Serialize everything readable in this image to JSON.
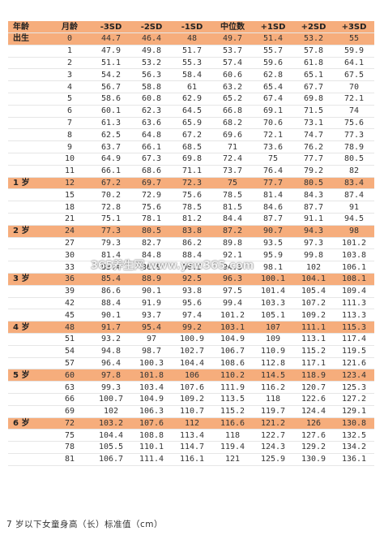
{
  "table": {
    "headers": [
      "年龄",
      "月龄",
      "-3SD",
      "-2SD",
      "-1SD",
      "中位数",
      "+1SD",
      "+2SD",
      "+3SD"
    ],
    "rows": [
      {
        "age": "出生",
        "m": "0",
        "v": [
          "44.7",
          "46.4",
          "48",
          "49.7",
          "51.4",
          "53.2",
          "55"
        ],
        "hl": true
      },
      {
        "age": "",
        "m": "1",
        "v": [
          "47.9",
          "49.8",
          "51.7",
          "53.7",
          "55.7",
          "57.8",
          "59.9"
        ],
        "hl": false
      },
      {
        "age": "",
        "m": "2",
        "v": [
          "51.1",
          "53.2",
          "55.3",
          "57.4",
          "59.6",
          "61.8",
          "64.1"
        ],
        "hl": false
      },
      {
        "age": "",
        "m": "3",
        "v": [
          "54.2",
          "56.3",
          "58.4",
          "60.6",
          "62.8",
          "65.1",
          "67.5"
        ],
        "hl": false
      },
      {
        "age": "",
        "m": "4",
        "v": [
          "56.7",
          "58.8",
          "61",
          "63.2",
          "65.4",
          "67.7",
          "70"
        ],
        "hl": false
      },
      {
        "age": "",
        "m": "5",
        "v": [
          "58.6",
          "60.8",
          "62.9",
          "65.2",
          "67.4",
          "69.8",
          "72.1"
        ],
        "hl": false
      },
      {
        "age": "",
        "m": "6",
        "v": [
          "60.1",
          "62.3",
          "64.5",
          "66.8",
          "69.1",
          "71.5",
          "74"
        ],
        "hl": false
      },
      {
        "age": "",
        "m": "7",
        "v": [
          "61.3",
          "63.6",
          "65.9",
          "68.2",
          "70.6",
          "73.1",
          "75.6"
        ],
        "hl": false
      },
      {
        "age": "",
        "m": "8",
        "v": [
          "62.5",
          "64.8",
          "67.2",
          "69.6",
          "72.1",
          "74.7",
          "77.3"
        ],
        "hl": false
      },
      {
        "age": "",
        "m": "9",
        "v": [
          "63.7",
          "66.1",
          "68.5",
          "71",
          "73.6",
          "76.2",
          "78.9"
        ],
        "hl": false
      },
      {
        "age": "",
        "m": "10",
        "v": [
          "64.9",
          "67.3",
          "69.8",
          "72.4",
          "75",
          "77.7",
          "80.5"
        ],
        "hl": false
      },
      {
        "age": "",
        "m": "11",
        "v": [
          "66.1",
          "68.6",
          "71.1",
          "73.7",
          "76.4",
          "79.2",
          "82"
        ],
        "hl": false
      },
      {
        "age": "1 岁",
        "m": "12",
        "v": [
          "67.2",
          "69.7",
          "72.3",
          "75",
          "77.7",
          "80.5",
          "83.4"
        ],
        "hl": true
      },
      {
        "age": "",
        "m": "15",
        "v": [
          "70.2",
          "72.9",
          "75.6",
          "78.5",
          "81.4",
          "84.3",
          "87.4"
        ],
        "hl": false
      },
      {
        "age": "",
        "m": "18",
        "v": [
          "72.8",
          "75.6",
          "78.5",
          "81.5",
          "84.6",
          "87.7",
          "91"
        ],
        "hl": false
      },
      {
        "age": "",
        "m": "21",
        "v": [
          "75.1",
          "78.1",
          "81.2",
          "84.4",
          "87.7",
          "91.1",
          "94.5"
        ],
        "hl": false
      },
      {
        "age": "2 岁",
        "m": "24",
        "v": [
          "77.3",
          "80.5",
          "83.8",
          "87.2",
          "90.7",
          "94.3",
          "98"
        ],
        "hl": true
      },
      {
        "age": "",
        "m": "27",
        "v": [
          "79.3",
          "82.7",
          "86.2",
          "89.8",
          "93.5",
          "97.3",
          "101.2"
        ],
        "hl": false
      },
      {
        "age": "",
        "m": "30",
        "v": [
          "81.4",
          "84.8",
          "88.4",
          "92.1",
          "95.9",
          "99.8",
          "103.8"
        ],
        "hl": false
      },
      {
        "age": "",
        "m": "33",
        "v": [
          "83.4",
          "86.9",
          "90.5",
          "94.3",
          "98.1",
          "102",
          "106.1"
        ],
        "hl": false
      },
      {
        "age": "3 岁",
        "m": "36",
        "v": [
          "85.4",
          "88.9",
          "92.5",
          "96.3",
          "100.1",
          "104.1",
          "108.1"
        ],
        "hl": true
      },
      {
        "age": "",
        "m": "39",
        "v": [
          "86.6",
          "90.1",
          "93.8",
          "97.5",
          "101.4",
          "105.4",
          "109.4"
        ],
        "hl": false
      },
      {
        "age": "",
        "m": "42",
        "v": [
          "88.4",
          "91.9",
          "95.6",
          "99.4",
          "103.3",
          "107.2",
          "111.3"
        ],
        "hl": false
      },
      {
        "age": "",
        "m": "45",
        "v": [
          "90.1",
          "93.7",
          "97.4",
          "101.2",
          "105.1",
          "109.2",
          "113.3"
        ],
        "hl": false
      },
      {
        "age": "4 岁",
        "m": "48",
        "v": [
          "91.7",
          "95.4",
          "99.2",
          "103.1",
          "107",
          "111.1",
          "115.3"
        ],
        "hl": true
      },
      {
        "age": "",
        "m": "51",
        "v": [
          "93.2",
          "97",
          "100.9",
          "104.9",
          "109",
          "113.1",
          "117.4"
        ],
        "hl": false
      },
      {
        "age": "",
        "m": "54",
        "v": [
          "94.8",
          "98.7",
          "102.7",
          "106.7",
          "110.9",
          "115.2",
          "119.5"
        ],
        "hl": false
      },
      {
        "age": "",
        "m": "57",
        "v": [
          "96.4",
          "100.3",
          "104.4",
          "108.6",
          "112.8",
          "117.1",
          "121.6"
        ],
        "hl": false
      },
      {
        "age": "5 岁",
        "m": "60",
        "v": [
          "97.8",
          "101.8",
          "106",
          "110.2",
          "114.5",
          "118.9",
          "123.4"
        ],
        "hl": true
      },
      {
        "age": "",
        "m": "63",
        "v": [
          "99.3",
          "103.4",
          "107.6",
          "111.9",
          "116.2",
          "120.7",
          "125.3"
        ],
        "hl": false
      },
      {
        "age": "",
        "m": "66",
        "v": [
          "100.7",
          "104.9",
          "109.2",
          "113.5",
          "118",
          "122.6",
          "127.2"
        ],
        "hl": false
      },
      {
        "age": "",
        "m": "69",
        "v": [
          "102",
          "106.3",
          "110.7",
          "115.2",
          "119.7",
          "124.4",
          "129.1"
        ],
        "hl": false
      },
      {
        "age": "6 岁",
        "m": "72",
        "v": [
          "103.2",
          "107.6",
          "112",
          "116.6",
          "121.2",
          "126",
          "130.8"
        ],
        "hl": true
      },
      {
        "age": "",
        "m": "75",
        "v": [
          "104.4",
          "108.8",
          "113.4",
          "118",
          "122.7",
          "127.6",
          "132.5"
        ],
        "hl": false
      },
      {
        "age": "",
        "m": "78",
        "v": [
          "105.5",
          "110.1",
          "114.7",
          "119.4",
          "124.3",
          "129.2",
          "134.2"
        ],
        "hl": false
      },
      {
        "age": "",
        "m": "81",
        "v": [
          "106.7",
          "111.4",
          "116.1",
          "121",
          "125.9",
          "130.9",
          "136.1"
        ],
        "hl": false
      }
    ]
  },
  "watermark": "365养生网 www.ysw365.com",
  "caption": "7 岁以下女童身高（长）标准值（cm）",
  "colors": {
    "highlight": "#f6ad7c"
  }
}
